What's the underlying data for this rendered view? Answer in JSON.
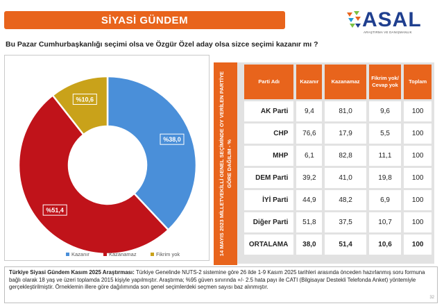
{
  "header": {
    "title": "SİYASİ GÜNDEM"
  },
  "logo": {
    "name": "ASAL",
    "tagline": "ARAŞTIRMA VE DANIŞMANLIK"
  },
  "question": "Bu Pazar Cumhurbaşkanlığı  seçimi olsa ve Özgür Özel aday olsa sizce seçimi kazanır mı ?",
  "chart_data": {
    "type": "pie",
    "title": "",
    "categories": [
      "Kazanır",
      "Kazanamaz",
      "Fikrim yok"
    ],
    "values": [
      38.0,
      51.4,
      10.6
    ],
    "labels": [
      "%38,0",
      "%51,4",
      "%10,6"
    ],
    "colors": [
      "#4a8fd9",
      "#c0131a",
      "#c9a21a"
    ],
    "donut": true,
    "legend_position": "bottom"
  },
  "table": {
    "side_label": "14 MAYIS 2023 MİLLETVEKİLLİ GENEL SEÇİMİNDE OY VERİLEN PARTİYE GÖRE DAĞILIM - %",
    "headers": [
      "Parti Adı",
      "Kazanır",
      "Kazanamaz",
      "Fikrim yok/ Cevap yok",
      "Toplam"
    ],
    "rows": [
      [
        "AK Parti",
        "9,4",
        "81,0",
        "9,6",
        "100"
      ],
      [
        "CHP",
        "76,6",
        "17,9",
        "5,5",
        "100"
      ],
      [
        "MHP",
        "6,1",
        "82,8",
        "11,1",
        "100"
      ],
      [
        "DEM Parti",
        "39,2",
        "41,0",
        "19,8",
        "100"
      ],
      [
        "İYİ Parti",
        "44,9",
        "48,2",
        "6,9",
        "100"
      ],
      [
        "Diğer Parti",
        "51,8",
        "37,5",
        "10,7",
        "100"
      ],
      [
        "ORTALAMA",
        "38,0",
        "51,4",
        "10,6",
        "100"
      ]
    ]
  },
  "footer": {
    "bold": "Türkiye Siyasi Gündem Kasım 2025 Araştırması:",
    "text": " Türkiye Genelinde  NUTS-2 sistemine göre 26 ilde 1-9 Kasım 2025 tarihleri arasında önceden hazırlanmış soru formuna bağlı olarak 18 yaş ve üzeri toplamda 2015 kişiyle yapılmıştır. Araştırma; %95 güven sınırında +/- 2.5 hata payı ile CATI (Bilgisayar Destekli Telefonda Anket) yöntemiyle gerçekleştirilmiştir. Örneklemin illere göre dağılımında son genel seçimlerdeki seçmen sayısı baz alınmıştır.",
    "page": "32"
  }
}
